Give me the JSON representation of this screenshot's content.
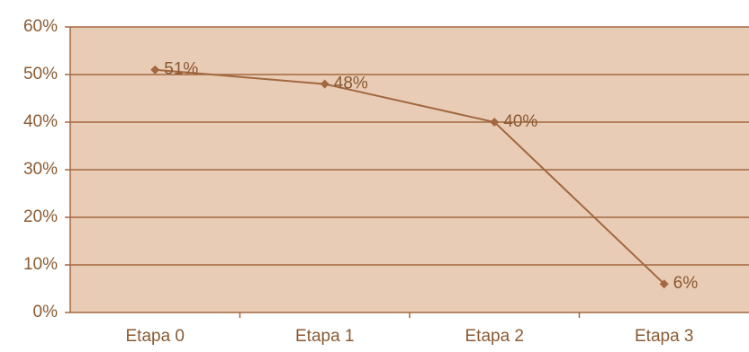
{
  "chart_data": {
    "type": "line",
    "categories": [
      "Etapa 0",
      "Etapa 1",
      "Etapa 2",
      "Etapa 3"
    ],
    "series": [
      {
        "values": [
          51,
          48,
          40,
          6
        ],
        "data_labels": [
          "51%",
          "48%",
          "40%",
          "6%"
        ]
      }
    ],
    "ylim": [
      0,
      60
    ],
    "y_ticks": [
      0,
      10,
      20,
      30,
      40,
      50,
      60
    ],
    "y_tick_labels": [
      "0%",
      "10%",
      "20%",
      "30%",
      "40%",
      "50%",
      "60%"
    ],
    "grid": true,
    "legend": "none",
    "colors": {
      "plot_background": "#e9ccb6",
      "line": "#a2683f",
      "gridline": "#a2683f",
      "text": "#8a5a33"
    }
  }
}
